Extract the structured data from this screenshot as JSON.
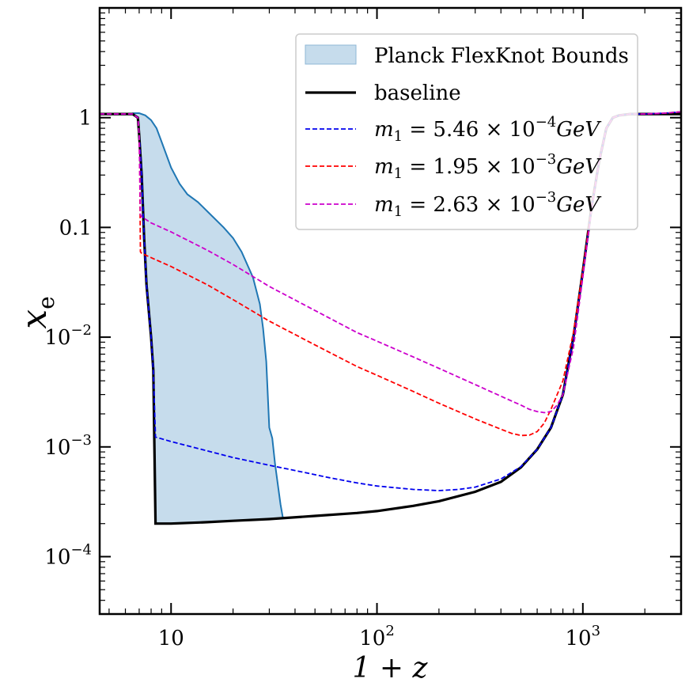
{
  "chart_data": {
    "type": "line",
    "xscale": "log",
    "yscale": "log",
    "xlim": [
      4.5,
      3000
    ],
    "ylim": [
      3e-05,
      10
    ],
    "xlabel": "1 + z",
    "ylabel": "x",
    "ylabel_sub": "e",
    "grid": false,
    "legend_position": "top-right",
    "x_ticks": [
      {
        "value": 10,
        "base": "10",
        "exp": ""
      },
      {
        "value": 100,
        "base": "10",
        "exp": "2"
      },
      {
        "value": 1000,
        "base": "10",
        "exp": "3"
      }
    ],
    "y_ticks": [
      {
        "value": 1,
        "base": "1",
        "exp": ""
      },
      {
        "value": 0.1,
        "base": "0.1",
        "exp": ""
      },
      {
        "value": 0.01,
        "base": "10",
        "exp": "−2"
      },
      {
        "value": 0.001,
        "base": "10",
        "exp": "−3"
      },
      {
        "value": 0.0001,
        "base": "10",
        "exp": "−4"
      }
    ],
    "band": {
      "name": "Planck FlexKnot Bounds",
      "color": "#c6dcec",
      "edge_color": "#1f77b4",
      "upper": {
        "x": [
          6.5,
          7.0,
          7.5,
          8.0,
          8.5,
          9.0,
          10.0,
          11.0,
          12.0,
          13.5,
          15.0,
          18.0,
          20.0,
          22.0,
          25.0,
          27.0,
          28.0,
          29.0,
          29.5,
          30.0,
          31.0,
          32.0,
          34.0,
          35.0
        ],
        "y": [
          1.1,
          1.1,
          1.05,
          0.95,
          0.8,
          0.6,
          0.35,
          0.25,
          0.2,
          0.17,
          0.14,
          0.1,
          0.08,
          0.06,
          0.035,
          0.02,
          0.012,
          0.006,
          0.003,
          0.0015,
          0.0012,
          0.0007,
          0.0003,
          0.00022
        ]
      },
      "lower": {
        "x": [
          6.5,
          6.9,
          7.0,
          7.2,
          7.4,
          7.6,
          8.0,
          8.2,
          8.4,
          9.0,
          12.0,
          15.0,
          20.0,
          25.0,
          30.0,
          35.0
        ],
        "y": [
          1.1,
          1.0,
          0.7,
          0.3,
          0.08,
          0.03,
          0.01,
          0.005,
          0.0002,
          0.000196,
          0.0002,
          0.000205,
          0.00021,
          0.000214,
          0.000218,
          0.00022
        ]
      }
    },
    "series": [
      {
        "name": "baseline",
        "color": "#000000",
        "dash": "solid",
        "x": [
          4.5,
          6.0,
          6.5,
          6.9,
          7.0,
          7.2,
          7.4,
          7.6,
          8.0,
          8.2,
          8.4,
          10,
          15,
          20,
          30,
          50,
          80,
          100,
          150,
          200,
          300,
          400,
          500,
          600,
          700,
          800,
          900,
          1000,
          1100,
          1200,
          1300,
          1400,
          1500,
          1700,
          2000,
          3000
        ],
        "y": [
          1.08,
          1.08,
          1.08,
          1.0,
          0.7,
          0.3,
          0.08,
          0.03,
          0.01,
          0.005,
          0.0002,
          0.0002,
          0.000206,
          0.000212,
          0.00022,
          0.000235,
          0.00025,
          0.00026,
          0.00029,
          0.00032,
          0.00039,
          0.00048,
          0.00065,
          0.00095,
          0.0015,
          0.003,
          0.01,
          0.04,
          0.15,
          0.4,
          0.8,
          1.0,
          1.05,
          1.08,
          1.08,
          1.08
        ]
      },
      {
        "name": "m₁ = 5.46 × 10⁻⁴GeV",
        "label_prefix": "m",
        "label_sub": "1",
        "label_mid": " = 5.46 × 10",
        "label_exp": "−4",
        "label_unit": "GeV",
        "color": "#0000ee",
        "dash": "dashed",
        "x": [
          4.5,
          6.0,
          6.5,
          6.9,
          7.0,
          7.2,
          7.4,
          7.6,
          8.0,
          8.2,
          8.4,
          10,
          15,
          20,
          30,
          40,
          60,
          80,
          100,
          150,
          200,
          250,
          300,
          400,
          500,
          600,
          700,
          800,
          900,
          1000,
          1100,
          1200,
          1300,
          1400,
          1500,
          1700,
          2000,
          2500,
          3000
        ],
        "y": [
          1.08,
          1.08,
          1.08,
          1.0,
          0.7,
          0.3,
          0.08,
          0.03,
          0.01,
          0.005,
          0.00123,
          0.00112,
          0.00092,
          0.0008,
          0.00068,
          0.00061,
          0.00052,
          0.00047,
          0.00044,
          0.00041,
          0.0004,
          0.00041,
          0.00043,
          0.00051,
          0.00066,
          0.00095,
          0.0015,
          0.003,
          0.01,
          0.04,
          0.15,
          0.4,
          0.8,
          1.0,
          1.05,
          1.08,
          1.08,
          1.1,
          1.13
        ]
      },
      {
        "name": "m₁ = 1.95 × 10⁻³GeV",
        "label_prefix": "m",
        "label_sub": "1",
        "label_mid": " = 1.95 × 10",
        "label_exp": "−3",
        "label_unit": "GeV",
        "color": "#ff0000",
        "dash": "dashed",
        "x": [
          4.5,
          6.0,
          6.5,
          6.9,
          7.0,
          7.05,
          7.1,
          7.2,
          8,
          10,
          15,
          20,
          30,
          50,
          80,
          100,
          150,
          200,
          300,
          400,
          450,
          500,
          550,
          600,
          650,
          700,
          800,
          900,
          1000,
          1100,
          1200,
          1300,
          1400,
          1500,
          1700,
          2000,
          2500,
          3000
        ],
        "y": [
          1.08,
          1.08,
          1.08,
          1.0,
          0.7,
          0.3,
          0.06,
          0.058,
          0.053,
          0.044,
          0.03,
          0.022,
          0.014,
          0.0085,
          0.0054,
          0.0045,
          0.0032,
          0.0025,
          0.0018,
          0.00145,
          0.00133,
          0.00127,
          0.00128,
          0.00138,
          0.00165,
          0.0022,
          0.004,
          0.011,
          0.04,
          0.15,
          0.4,
          0.8,
          1.0,
          1.05,
          1.08,
          1.08,
          1.1,
          1.13
        ]
      },
      {
        "name": "m₁ = 2.63 × 10⁻³GeV",
        "label_prefix": "m",
        "label_sub": "1",
        "label_mid": " = 2.63 × 10",
        "label_exp": "−3",
        "label_unit": "GeV",
        "color": "#cc00cc",
        "dash": "dashed",
        "x": [
          4.5,
          6.0,
          6.5,
          6.9,
          7.0,
          7.05,
          7.1,
          7.2,
          8,
          10,
          15,
          20,
          30,
          50,
          80,
          100,
          150,
          200,
          300,
          400,
          500,
          550,
          600,
          650,
          700,
          750,
          800,
          900,
          1000,
          1100,
          1200,
          1300,
          1400,
          1500,
          1700,
          2000,
          2500,
          3000
        ],
        "y": [
          1.08,
          1.08,
          1.08,
          1.0,
          0.7,
          0.3,
          0.13,
          0.125,
          0.11,
          0.091,
          0.062,
          0.046,
          0.029,
          0.0175,
          0.011,
          0.0092,
          0.0066,
          0.0052,
          0.0037,
          0.0029,
          0.0024,
          0.0022,
          0.0021,
          0.00205,
          0.0021,
          0.0024,
          0.003,
          0.008,
          0.035,
          0.14,
          0.4,
          0.8,
          1.0,
          1.05,
          1.08,
          1.08,
          1.1,
          1.13
        ]
      }
    ]
  }
}
